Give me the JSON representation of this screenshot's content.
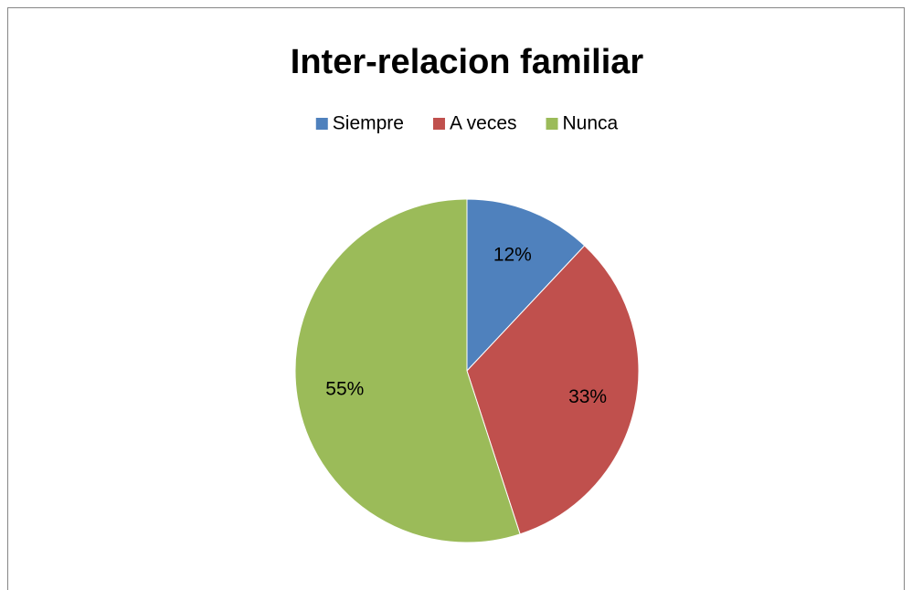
{
  "chart_data": {
    "type": "pie",
    "title": "Inter-relacion familiar",
    "categories": [
      "Siempre",
      "A veces",
      "Nunca"
    ],
    "values": [
      12,
      33,
      55
    ],
    "value_labels": [
      "12%",
      "33%",
      "55%"
    ],
    "colors": [
      "#4f81bd",
      "#c0504d",
      "#9bbb59"
    ],
    "legend": "top"
  }
}
